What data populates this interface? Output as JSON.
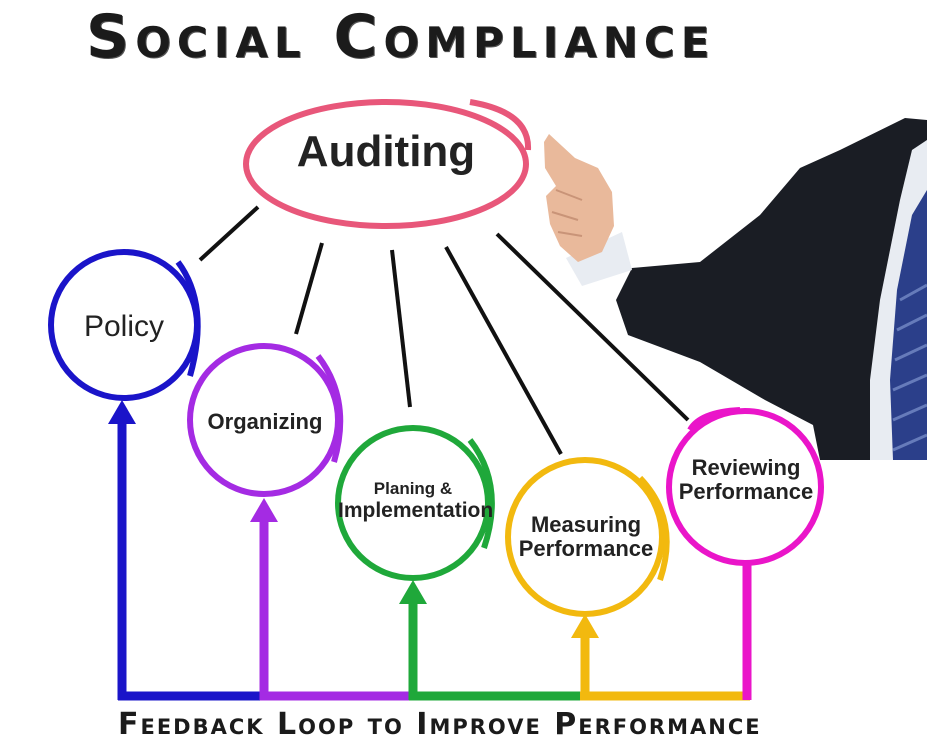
{
  "title": "Social Compliance",
  "footer": "Feedback Loop to Improve Performance",
  "center": {
    "label": "Auditing",
    "color": "#e8577a"
  },
  "nodes": [
    {
      "line1": "Policy",
      "line2": "",
      "color": "#1a14c9"
    },
    {
      "line1": "Organizing",
      "line2": "",
      "color": "#a42be3"
    },
    {
      "line1": "Planing &",
      "line2": "Implementation",
      "color": "#1fa83a"
    },
    {
      "line1": "Measuring",
      "line2": "Performance",
      "color": "#f2b90f"
    },
    {
      "line1": "Reviewing",
      "line2": "Performance",
      "color": "#ea15c9"
    }
  ],
  "colors": {
    "text": "#1b1b1b",
    "suit": "#1a1d24",
    "skin": "#e9b99b",
    "shirt": "#e8ecf2",
    "tie": "#2b3f8a",
    "connector": "#111111"
  }
}
